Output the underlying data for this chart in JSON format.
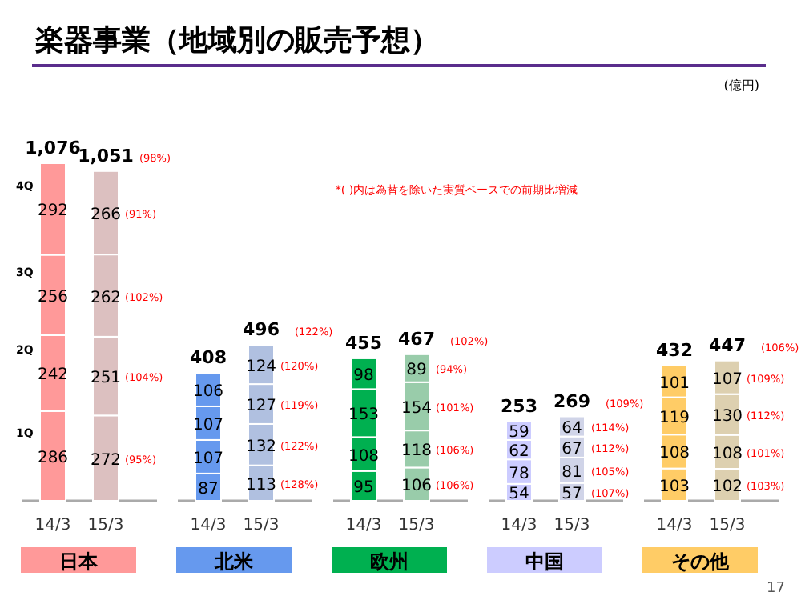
{
  "chart_data": [
    {
      "type": "bar",
      "stacked": true,
      "data_labels": true,
      "title": "日本",
      "categories": [
        "14/3",
        "15/3"
      ],
      "totals": [
        "1,076",
        "1,051"
      ],
      "series": [
        {
          "name": "1Q",
          "colors": [
            "#ff9999",
            "#dcc0c0"
          ],
          "values": [
            286,
            272
          ]
        },
        {
          "name": "2Q",
          "colors": [
            "#ff9999",
            "#dcc0c0"
          ],
          "values": [
            242,
            251
          ]
        },
        {
          "name": "3Q",
          "colors": [
            "#ff9999",
            "#dcc0c0"
          ],
          "values": [
            256,
            262
          ]
        },
        {
          "name": "4Q",
          "colors": [
            "#ff9999",
            "#dcc0c0"
          ],
          "values": [
            292,
            266
          ]
        }
      ],
      "annotations": [
        "楽器事業（地域別の販売予想）",
        "(億円)",
        "*( )内は為替を除いた実質ベースでの前期比増減",
        "17",
        "(95%)",
        "(104%)",
        "(102%)",
        "(91%)",
        "(98%)"
      ]
    },
    {
      "type": "bar",
      "stacked": true,
      "data_labels": true,
      "title": "北米",
      "categories": [
        "14/3",
        "15/3"
      ],
      "totals": [
        "408",
        "496"
      ],
      "series": [
        {
          "colors": [
            "#6699ee",
            "#b0c0e0"
          ],
          "values": [
            87,
            113
          ]
        },
        {
          "colors": [
            "#6699ee",
            "#b0c0e0"
          ],
          "values": [
            107,
            132
          ]
        },
        {
          "colors": [
            "#6699ee",
            "#b0c0e0"
          ],
          "values": [
            107,
            127
          ]
        },
        {
          "colors": [
            "#6699ee",
            "#b0c0e0"
          ],
          "values": [
            106,
            124
          ]
        }
      ],
      "annotations": [
        "(128%)",
        "(122%)",
        "(119%)",
        "(120%)",
        "(122%)"
      ]
    },
    {
      "type": "bar",
      "stacked": true,
      "data_labels": true,
      "title": "欧州",
      "categories": [
        "14/3",
        "15/3"
      ],
      "totals": [
        "455",
        "467"
      ],
      "series": [
        {
          "colors": [
            "#00b050",
            "#99ccaa"
          ],
          "values": [
            95,
            106
          ]
        },
        {
          "colors": [
            "#00b050",
            "#99ccaa"
          ],
          "values": [
            108,
            118
          ]
        },
        {
          "colors": [
            "#00b050",
            "#99ccaa"
          ],
          "values": [
            153,
            154
          ]
        },
        {
          "colors": [
            "#00b050",
            "#99ccaa"
          ],
          "values": [
            98,
            89
          ]
        }
      ],
      "annotations": [
        "(106%)",
        "(106%)",
        "(101%)",
        "(94%)",
        "(102%)"
      ]
    },
    {
      "type": "bar",
      "stacked": true,
      "data_labels": true,
      "title": "中国",
      "categories": [
        "14/3",
        "15/3"
      ],
      "totals": [
        "253",
        "269"
      ],
      "series": [
        {
          "colors": [
            "#ccccff",
            "#d0d4e8"
          ],
          "values": [
            54,
            57
          ]
        },
        {
          "colors": [
            "#ccccff",
            "#d0d4e8"
          ],
          "values": [
            78,
            81
          ]
        },
        {
          "colors": [
            "#ccccff",
            "#d0d4e8"
          ],
          "values": [
            62,
            67
          ]
        },
        {
          "colors": [
            "#ccccff",
            "#d0d4e8"
          ],
          "values": [
            59,
            64
          ]
        }
      ],
      "annotations": [
        "(107%)",
        "(105%)",
        "(112%)",
        "(114%)",
        "(109%)"
      ]
    },
    {
      "type": "bar",
      "stacked": true,
      "data_labels": true,
      "title": "その他",
      "categories": [
        "14/3",
        "15/3"
      ],
      "totals": [
        "432",
        "447"
      ],
      "series": [
        {
          "colors": [
            "#ffcc66",
            "#ddd0b0"
          ],
          "values": [
            103,
            102
          ]
        },
        {
          "colors": [
            "#ffcc66",
            "#ddd0b0"
          ],
          "values": [
            108,
            108
          ]
        },
        {
          "colors": [
            "#ffcc66",
            "#ddd0b0"
          ],
          "values": [
            119,
            130
          ]
        },
        {
          "colors": [
            "#ffcc66",
            "#ddd0b0"
          ],
          "values": [
            101,
            107
          ]
        }
      ],
      "annotations": [
        "(103%)",
        "(101%)",
        "(112%)",
        "(109%)",
        "(106%)"
      ]
    }
  ]
}
